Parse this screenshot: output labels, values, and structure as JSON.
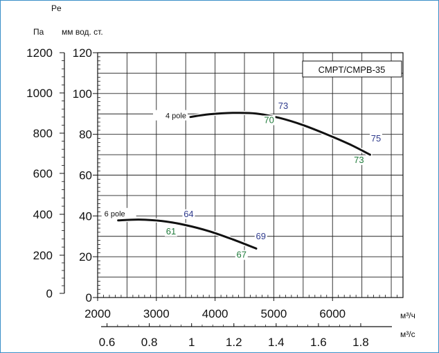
{
  "chart_data": {
    "type": "line",
    "title": "CMPT/CMPB-35",
    "y_axes": {
      "left_outer": {
        "unit": "Па",
        "ticks": [
          "0",
          "200",
          "400",
          "600",
          "800",
          "1000",
          "1200"
        ],
        "range": [
          0,
          1200
        ]
      },
      "left_inner": {
        "symbol": "Pe",
        "unit": "мм вод. ст.",
        "ticks": [
          "0",
          "20",
          "40",
          "60",
          "80",
          "100",
          "120"
        ],
        "range": [
          0,
          120
        ]
      }
    },
    "x_axes": {
      "primary": {
        "unit": "м³/ч",
        "ticks": [
          "2000",
          "3000",
          "4000",
          "5000",
          "6000"
        ],
        "range": [
          2000,
          7200
        ]
      },
      "secondary": {
        "unit": "м³/с",
        "ticks": [
          "0.6",
          "0.8",
          "1",
          "1.2",
          "1.4",
          "1.6",
          "1.8"
        ]
      }
    },
    "grid": true,
    "series": [
      {
        "name": "4 pole",
        "x": [
          3580,
          3900,
          4300,
          4700,
          5100,
          5500,
          5900,
          6300,
          6640
        ],
        "y": [
          88.5,
          89.8,
          90.5,
          90.2,
          88,
          84.5,
          80,
          75,
          70
        ],
        "efficiency_labels": [
          {
            "text": "73",
            "x": 5160,
            "y": 92.5,
            "color": "#2e3a8c"
          },
          {
            "text": "70",
            "x": 4920,
            "y": 85.5,
            "color": "#1f7a3a"
          },
          {
            "text": "75",
            "x": 6740,
            "y": 76.5,
            "color": "#2e3a8c"
          },
          {
            "text": "73",
            "x": 6450,
            "y": 66,
            "color": "#1f7a3a"
          }
        ]
      },
      {
        "name": "6 pole",
        "x": [
          2350,
          2700,
          3100,
          3500,
          3900,
          4300,
          4700
        ],
        "y": [
          37.8,
          38.2,
          37.5,
          35.5,
          32.5,
          28.5,
          24
        ],
        "efficiency_labels": [
          {
            "text": "64",
            "x": 3550,
            "y": 39.5,
            "color": "#2e3a8c"
          },
          {
            "text": "61",
            "x": 3250,
            "y": 31,
            "color": "#1f7a3a"
          },
          {
            "text": "69",
            "x": 4780,
            "y": 28.5,
            "color": "#2e3a8c"
          },
          {
            "text": "67",
            "x": 4450,
            "y": 19.5,
            "color": "#1f7a3a"
          }
        ]
      }
    ]
  }
}
